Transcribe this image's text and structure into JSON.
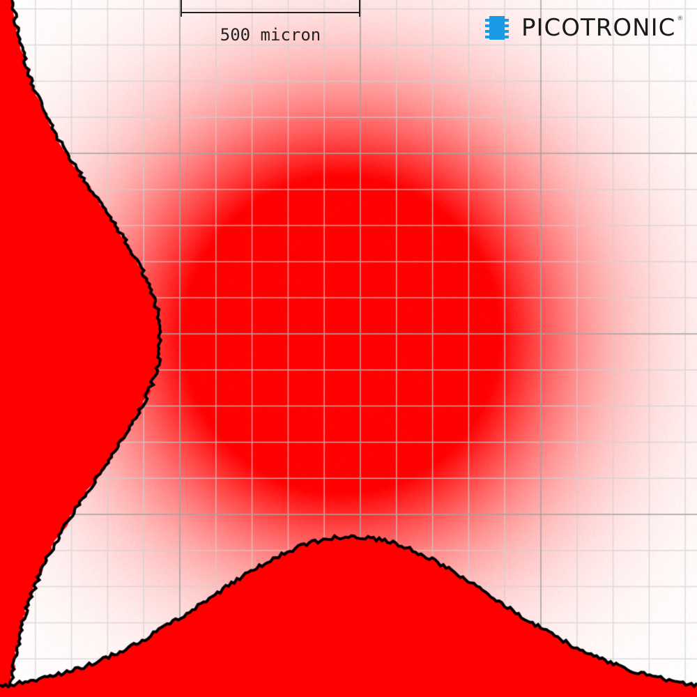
{
  "scale_bar": {
    "label": "500 micron"
  },
  "logo": {
    "text": "PICOTRONIC",
    "mark": "®",
    "icon": "chip-icon"
  },
  "colors": {
    "beam": "#ff0000",
    "outline": "#000000",
    "grid_major": "#909090",
    "grid_minor": "#d0d0d0",
    "logo_icon": "#1a9be6"
  }
}
